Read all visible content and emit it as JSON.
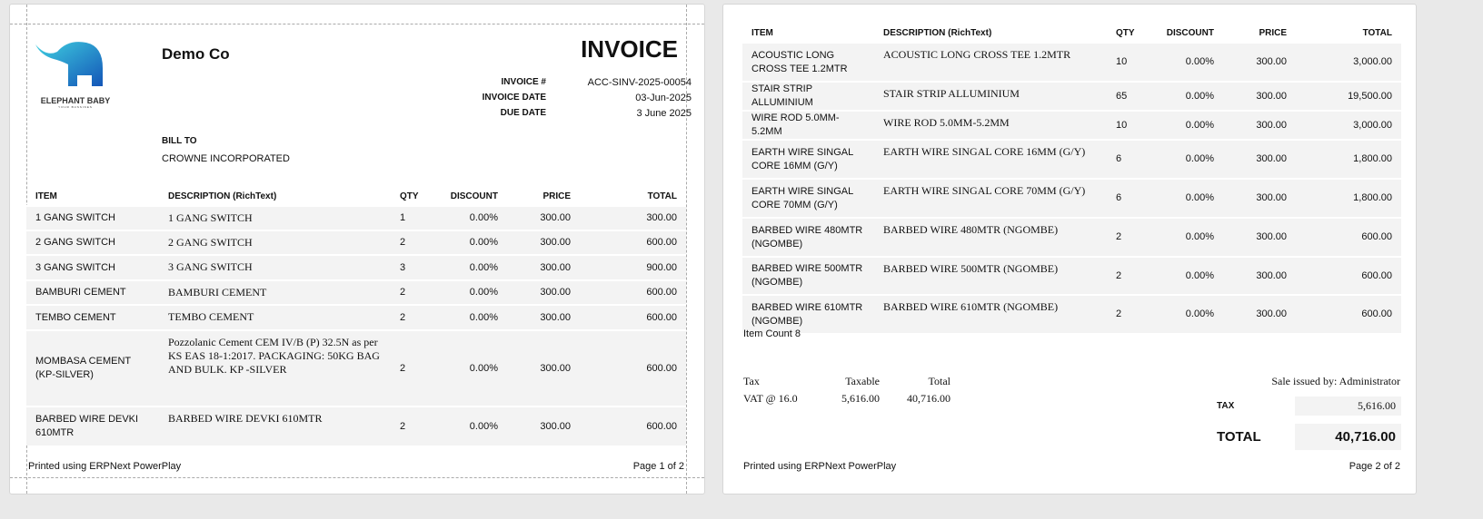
{
  "company": {
    "name": "Demo Co",
    "logo_text": "ELEPHANT BABY",
    "logo_tagline": "YOUR BUSSINES"
  },
  "doc_title": "INVOICE",
  "meta": [
    {
      "label": "INVOICE #",
      "value": "ACC-SINV-2025-00054"
    },
    {
      "label": "INVOICE DATE",
      "value": "03-Jun-2025"
    },
    {
      "label": "DUE DATE",
      "value": "3 June 2025"
    }
  ],
  "bill_to": {
    "label": "BILL TO",
    "name": "CROWNE INCORPORATED"
  },
  "columns": [
    "ITEM",
    "DESCRIPTION (RichText)",
    "QTY",
    "DISCOUNT",
    "PRICE",
    "TOTAL"
  ],
  "page1_rows": [
    [
      "1 GANG SWITCH",
      "1 GANG  SWITCH",
      "1",
      "0.00%",
      "300.00",
      "300.00"
    ],
    [
      "2 GANG SWITCH",
      "2 GANG  SWITCH",
      "2",
      "0.00%",
      "300.00",
      "600.00"
    ],
    [
      "3 GANG SWITCH",
      "3 GANG  SWITCH",
      "3",
      "0.00%",
      "300.00",
      "900.00"
    ],
    [
      "BAMBURI CEMENT",
      "BAMBURI CEMENT",
      "2",
      "0.00%",
      "300.00",
      "600.00"
    ],
    [
      "TEMBO CEMENT",
      "TEMBO CEMENT",
      "2",
      "0.00%",
      "300.00",
      "600.00"
    ],
    [
      "MOMBASA CEMENT (KP-SILVER)",
      "Pozzolanic Cement CEM IV/B (P) 32.5N as per KS EAS 18-1:2017. PACKAGING:  50KG BAG AND BULK. KP -SILVER",
      "2",
      "0.00%",
      "300.00",
      "600.00"
    ],
    [
      "BARBED WIRE DEVKI 610MTR",
      "BARBED WIRE DEVKI 610MTR",
      "2",
      "0.00%",
      "300.00",
      "600.00"
    ]
  ],
  "page2_rows": [
    [
      "ACOUSTIC LONG CROSS TEE 1.2MTR",
      "ACOUSTIC LONG CROSS TEE 1.2MTR",
      "10",
      "0.00%",
      "300.00",
      "3,000.00"
    ],
    [
      "STAIR STRIP ALLUMINIUM",
      "STAIR STRIP ALLUMINIUM",
      "65",
      "0.00%",
      "300.00",
      "19,500.00"
    ],
    [
      "WIRE ROD 5.0MM-5.2MM",
      "WIRE ROD 5.0MM-5.2MM",
      "10",
      "0.00%",
      "300.00",
      "3,000.00"
    ],
    [
      "EARTH WIRE SINGAL CORE 16MM (G/Y)",
      "EARTH WIRE SINGAL CORE 16MM (G/Y)",
      "6",
      "0.00%",
      "300.00",
      "1,800.00"
    ],
    [
      "EARTH WIRE SINGAL CORE 70MM (G/Y)",
      "EARTH WIRE SINGAL CORE 70MM (G/Y)",
      "6",
      "0.00%",
      "300.00",
      "1,800.00"
    ],
    [
      "BARBED WIRE 480MTR (NGOMBE)",
      "BARBED WIRE 480MTR (NGOMBE)",
      "2",
      "0.00%",
      "300.00",
      "600.00"
    ],
    [
      "BARBED WIRE 500MTR (NGOMBE)",
      "BARBED WIRE 500MTR (NGOMBE)",
      "2",
      "0.00%",
      "300.00",
      "600.00"
    ],
    [
      "BARBED WIRE 610MTR (NGOMBE)",
      "BARBED WIRE 610MTR (NGOMBE)",
      "2",
      "0.00%",
      "300.00",
      "600.00"
    ]
  ],
  "item_count": "Item Count 8",
  "tax_table": {
    "headers": [
      "Tax",
      "Taxable",
      "Total"
    ],
    "row": [
      "VAT @ 16.0",
      "5,616.00",
      "40,716.00"
    ]
  },
  "issued_by": "Sale issued by: Administrator",
  "totals": {
    "tax_label": "TAX",
    "tax_value": "5,616.00",
    "total_label": "TOTAL",
    "total_value": "40,716.00"
  },
  "footer": {
    "printed": "Printed using ERPNext PowerPlay",
    "page1": "Page 1 of 2",
    "page2": "Page 2 of 2"
  },
  "colors": {
    "row_bg": "#f3f3f3",
    "logo_blue": "#1e88d8"
  }
}
